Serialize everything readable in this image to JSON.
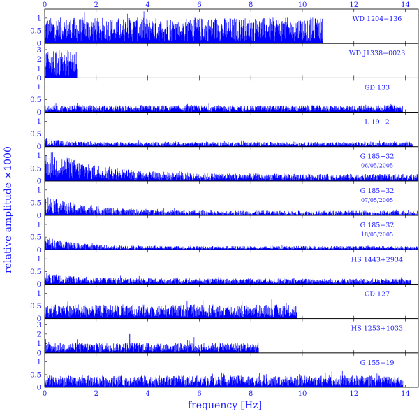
{
  "chart_data": {
    "type": "line",
    "xlabel": "frequency [Hz]",
    "ylabel": "relative amplitude ×1000",
    "xlim": [
      0,
      14.5
    ],
    "x_ticks": [
      0,
      2,
      4,
      6,
      8,
      10,
      12,
      14
    ],
    "x_tick_labels": [
      "0",
      "2",
      "4",
      "6",
      "8",
      "10",
      "12",
      "14"
    ],
    "color": "#0000ff",
    "grid": false,
    "panels": [
      {
        "label": "WD 1204−136",
        "date": "",
        "ylim": [
          0,
          1.3
        ],
        "y_ticks": [
          0,
          0.5,
          1
        ],
        "y_tick_labels": [
          "0",
          "0.5",
          "1"
        ],
        "x_max": 10.8,
        "baseline": 0.55,
        "noise": 0.28,
        "decay_amp": 0,
        "decay_scale": 1
      },
      {
        "label": "WD J1338−0023",
        "date": "",
        "ylim": [
          0,
          3.5
        ],
        "y_ticks": [
          0,
          1,
          2,
          3
        ],
        "y_tick_labels": [
          "0",
          "1",
          "2",
          "3"
        ],
        "x_max": 1.25,
        "baseline": 1.6,
        "noise": 0.6,
        "decay_amp": 0,
        "decay_scale": 1
      },
      {
        "label": "GD 133",
        "date": "",
        "ylim": [
          0,
          1.3
        ],
        "y_ticks": [
          0,
          0.5,
          1
        ],
        "y_tick_labels": [
          "0",
          "0.5",
          "1"
        ],
        "x_max": 13.9,
        "baseline": 0.15,
        "noise": 0.05,
        "decay_amp": 0,
        "decay_scale": 1
      },
      {
        "label": "L 19−2",
        "date": "",
        "ylim": [
          0,
          1.3
        ],
        "y_ticks": [
          0,
          0.5,
          1
        ],
        "y_tick_labels": [
          "0",
          "0.5",
          "1"
        ],
        "x_max": 14.3,
        "baseline": 0.1,
        "noise": 0.04,
        "decay_amp": 0.1,
        "decay_scale": 0.6
      },
      {
        "label": "G 185−32",
        "date": "06/05/2005",
        "ylim": [
          0,
          1.3
        ],
        "y_ticks": [
          0,
          0.5,
          1
        ],
        "y_tick_labels": [
          "0",
          "0.5",
          "1"
        ],
        "x_max": 14.5,
        "baseline": 0.15,
        "noise": 0.05,
        "decay_amp": 0.55,
        "decay_scale": 2.0
      },
      {
        "label": "G 185−32",
        "date": "07/05/2005",
        "ylim": [
          0,
          1.3
        ],
        "y_ticks": [
          0,
          0.5,
          1
        ],
        "y_tick_labels": [
          "0",
          "0.5",
          "1"
        ],
        "x_max": 14.5,
        "baseline": 0.1,
        "noise": 0.04,
        "decay_amp": 0.35,
        "decay_scale": 1.5
      },
      {
        "label": "G 185−32",
        "date": "18/05/2005",
        "ylim": [
          0,
          1.3
        ],
        "y_ticks": [
          0,
          0.5,
          1
        ],
        "y_tick_labels": [
          "0",
          "0.5",
          "1"
        ],
        "x_max": 14.5,
        "baseline": 0.08,
        "noise": 0.03,
        "decay_amp": 0.2,
        "decay_scale": 1.2
      },
      {
        "label": "HS 1443+2934",
        "date": "",
        "ylim": [
          0,
          1.3
        ],
        "y_ticks": [
          0,
          0.5,
          1
        ],
        "y_tick_labels": [
          "0",
          "0.5",
          "1"
        ],
        "x_max": 14.2,
        "baseline": 0.12,
        "noise": 0.05,
        "decay_amp": 0.1,
        "decay_scale": 1.5
      },
      {
        "label": "GD 127",
        "date": "",
        "ylim": [
          0,
          1.3
        ],
        "y_ticks": [
          0,
          0.5,
          1
        ],
        "y_tick_labels": [
          "0",
          "0.5",
          "1"
        ],
        "x_max": 9.8,
        "baseline": 0.3,
        "noise": 0.12,
        "decay_amp": 0,
        "decay_scale": 1
      },
      {
        "label": "HS 1253+1033",
        "date": "",
        "ylim": [
          0,
          3.5
        ],
        "y_ticks": [
          0,
          1,
          2,
          3
        ],
        "y_tick_labels": [
          "0",
          "1",
          "2",
          "3"
        ],
        "x_max": 8.3,
        "baseline": 0.6,
        "noise": 0.25,
        "decay_amp": 0,
        "decay_scale": 1,
        "peak_x": 3.3,
        "peak_y": 2.0
      },
      {
        "label": "G 155−19",
        "date": "",
        "ylim": [
          0,
          1.3
        ],
        "y_ticks": [
          0,
          0.5,
          1
        ],
        "y_tick_labels": [
          "0",
          "0.5",
          "1"
        ],
        "x_max": 13.9,
        "baseline": 0.25,
        "noise": 0.1,
        "decay_amp": 0,
        "decay_scale": 1
      }
    ]
  }
}
